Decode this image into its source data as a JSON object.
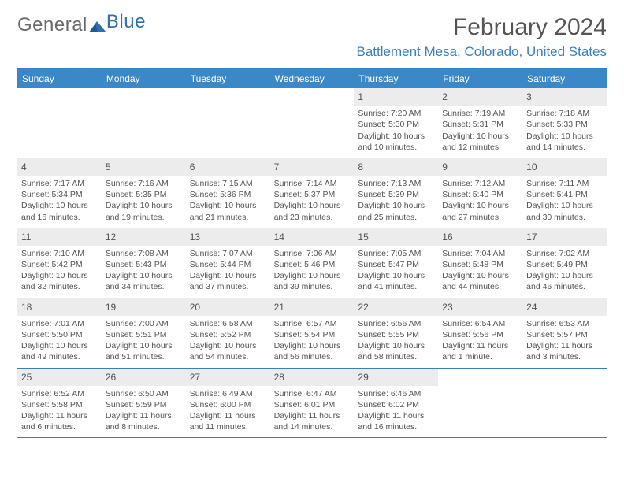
{
  "brand": {
    "part1": "General",
    "part2": "Blue"
  },
  "title": "February 2024",
  "location": "Battlement Mesa, Colorado, United States",
  "colors": {
    "accent": "#3a88c8",
    "accent_border": "#3a7fbf",
    "text": "#555555",
    "daynum_bg": "#ececec"
  },
  "day_headers": [
    "Sunday",
    "Monday",
    "Tuesday",
    "Wednesday",
    "Thursday",
    "Friday",
    "Saturday"
  ],
  "weeks": [
    [
      null,
      null,
      null,
      null,
      {
        "n": "1",
        "sr": "Sunrise: 7:20 AM",
        "ss": "Sunset: 5:30 PM",
        "d1": "Daylight: 10 hours",
        "d2": "and 10 minutes."
      },
      {
        "n": "2",
        "sr": "Sunrise: 7:19 AM",
        "ss": "Sunset: 5:31 PM",
        "d1": "Daylight: 10 hours",
        "d2": "and 12 minutes."
      },
      {
        "n": "3",
        "sr": "Sunrise: 7:18 AM",
        "ss": "Sunset: 5:33 PM",
        "d1": "Daylight: 10 hours",
        "d2": "and 14 minutes."
      }
    ],
    [
      {
        "n": "4",
        "sr": "Sunrise: 7:17 AM",
        "ss": "Sunset: 5:34 PM",
        "d1": "Daylight: 10 hours",
        "d2": "and 16 minutes."
      },
      {
        "n": "5",
        "sr": "Sunrise: 7:16 AM",
        "ss": "Sunset: 5:35 PM",
        "d1": "Daylight: 10 hours",
        "d2": "and 19 minutes."
      },
      {
        "n": "6",
        "sr": "Sunrise: 7:15 AM",
        "ss": "Sunset: 5:36 PM",
        "d1": "Daylight: 10 hours",
        "d2": "and 21 minutes."
      },
      {
        "n": "7",
        "sr": "Sunrise: 7:14 AM",
        "ss": "Sunset: 5:37 PM",
        "d1": "Daylight: 10 hours",
        "d2": "and 23 minutes."
      },
      {
        "n": "8",
        "sr": "Sunrise: 7:13 AM",
        "ss": "Sunset: 5:39 PM",
        "d1": "Daylight: 10 hours",
        "d2": "and 25 minutes."
      },
      {
        "n": "9",
        "sr": "Sunrise: 7:12 AM",
        "ss": "Sunset: 5:40 PM",
        "d1": "Daylight: 10 hours",
        "d2": "and 27 minutes."
      },
      {
        "n": "10",
        "sr": "Sunrise: 7:11 AM",
        "ss": "Sunset: 5:41 PM",
        "d1": "Daylight: 10 hours",
        "d2": "and 30 minutes."
      }
    ],
    [
      {
        "n": "11",
        "sr": "Sunrise: 7:10 AM",
        "ss": "Sunset: 5:42 PM",
        "d1": "Daylight: 10 hours",
        "d2": "and 32 minutes."
      },
      {
        "n": "12",
        "sr": "Sunrise: 7:08 AM",
        "ss": "Sunset: 5:43 PM",
        "d1": "Daylight: 10 hours",
        "d2": "and 34 minutes."
      },
      {
        "n": "13",
        "sr": "Sunrise: 7:07 AM",
        "ss": "Sunset: 5:44 PM",
        "d1": "Daylight: 10 hours",
        "d2": "and 37 minutes."
      },
      {
        "n": "14",
        "sr": "Sunrise: 7:06 AM",
        "ss": "Sunset: 5:46 PM",
        "d1": "Daylight: 10 hours",
        "d2": "and 39 minutes."
      },
      {
        "n": "15",
        "sr": "Sunrise: 7:05 AM",
        "ss": "Sunset: 5:47 PM",
        "d1": "Daylight: 10 hours",
        "d2": "and 41 minutes."
      },
      {
        "n": "16",
        "sr": "Sunrise: 7:04 AM",
        "ss": "Sunset: 5:48 PM",
        "d1": "Daylight: 10 hours",
        "d2": "and 44 minutes."
      },
      {
        "n": "17",
        "sr": "Sunrise: 7:02 AM",
        "ss": "Sunset: 5:49 PM",
        "d1": "Daylight: 10 hours",
        "d2": "and 46 minutes."
      }
    ],
    [
      {
        "n": "18",
        "sr": "Sunrise: 7:01 AM",
        "ss": "Sunset: 5:50 PM",
        "d1": "Daylight: 10 hours",
        "d2": "and 49 minutes."
      },
      {
        "n": "19",
        "sr": "Sunrise: 7:00 AM",
        "ss": "Sunset: 5:51 PM",
        "d1": "Daylight: 10 hours",
        "d2": "and 51 minutes."
      },
      {
        "n": "20",
        "sr": "Sunrise: 6:58 AM",
        "ss": "Sunset: 5:52 PM",
        "d1": "Daylight: 10 hours",
        "d2": "and 54 minutes."
      },
      {
        "n": "21",
        "sr": "Sunrise: 6:57 AM",
        "ss": "Sunset: 5:54 PM",
        "d1": "Daylight: 10 hours",
        "d2": "and 56 minutes."
      },
      {
        "n": "22",
        "sr": "Sunrise: 6:56 AM",
        "ss": "Sunset: 5:55 PM",
        "d1": "Daylight: 10 hours",
        "d2": "and 58 minutes."
      },
      {
        "n": "23",
        "sr": "Sunrise: 6:54 AM",
        "ss": "Sunset: 5:56 PM",
        "d1": "Daylight: 11 hours",
        "d2": "and 1 minute."
      },
      {
        "n": "24",
        "sr": "Sunrise: 6:53 AM",
        "ss": "Sunset: 5:57 PM",
        "d1": "Daylight: 11 hours",
        "d2": "and 3 minutes."
      }
    ],
    [
      {
        "n": "25",
        "sr": "Sunrise: 6:52 AM",
        "ss": "Sunset: 5:58 PM",
        "d1": "Daylight: 11 hours",
        "d2": "and 6 minutes."
      },
      {
        "n": "26",
        "sr": "Sunrise: 6:50 AM",
        "ss": "Sunset: 5:59 PM",
        "d1": "Daylight: 11 hours",
        "d2": "and 8 minutes."
      },
      {
        "n": "27",
        "sr": "Sunrise: 6:49 AM",
        "ss": "Sunset: 6:00 PM",
        "d1": "Daylight: 11 hours",
        "d2": "and 11 minutes."
      },
      {
        "n": "28",
        "sr": "Sunrise: 6:47 AM",
        "ss": "Sunset: 6:01 PM",
        "d1": "Daylight: 11 hours",
        "d2": "and 14 minutes."
      },
      {
        "n": "29",
        "sr": "Sunrise: 6:46 AM",
        "ss": "Sunset: 6:02 PM",
        "d1": "Daylight: 11 hours",
        "d2": "and 16 minutes."
      },
      null,
      null
    ]
  ]
}
